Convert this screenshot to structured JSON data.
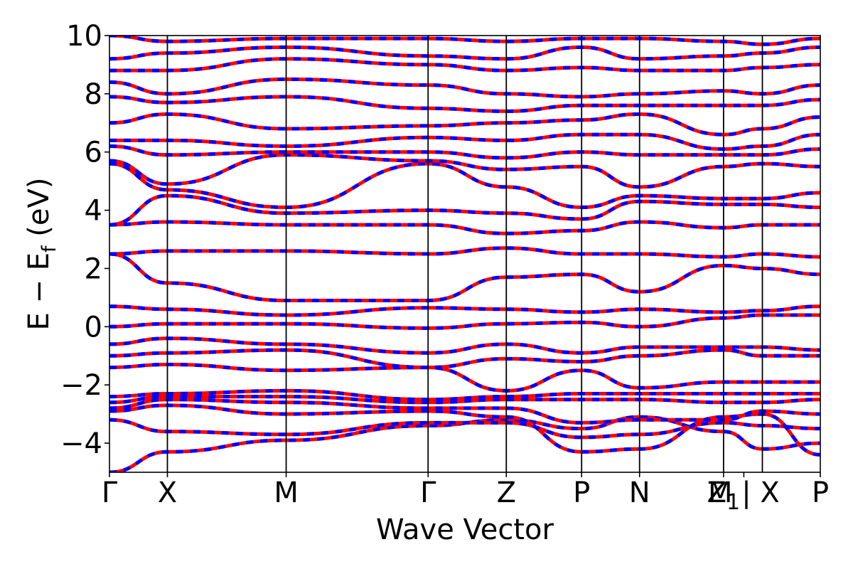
{
  "chart_data": {
    "type": "line",
    "xlabel": "Wave Vector",
    "ylabel": "E − E",
    "ylabel_subscript": "f",
    "ylabel_unit": " (eV)",
    "ylim": [
      -5,
      10
    ],
    "yticks": [
      -4,
      -2,
      0,
      2,
      4,
      6,
      8,
      10
    ],
    "ytick_labels": [
      "−4",
      "−2",
      "0",
      "2",
      "4",
      "6",
      "8",
      "10"
    ],
    "grid": false,
    "kpath_positions": [
      0,
      1.0,
      3.05,
      5.5,
      6.85,
      8.15,
      9.15,
      10.6,
      11.27,
      12.27
    ],
    "kpoint_labels": [
      {
        "k": 0,
        "label": "Γ"
      },
      {
        "k": 1.0,
        "label": "X"
      },
      {
        "k": 3.05,
        "label": "M"
      },
      {
        "k": 5.5,
        "label": "Γ"
      },
      {
        "k": 6.85,
        "label": "Z"
      },
      {
        "k": 8.15,
        "label": "P"
      },
      {
        "k": 9.15,
        "label": "N"
      },
      {
        "k": 10.6,
        "label": "Z",
        "subscript": "1"
      },
      {
        "k": 10.95,
        "label": "M | X"
      },
      {
        "k": 12.27,
        "label": "P"
      }
    ],
    "series_colors": {
      "solid": "#ff0000",
      "dashed": "#0000ff"
    },
    "series": [
      {
        "values": [
          -5.0,
          -4.3,
          -3.9,
          -3.4,
          -3.2,
          -3.5,
          -3.1,
          -3.6,
          -4.2,
          -4.0
        ]
      },
      {
        "values": [
          -3.2,
          -3.6,
          -3.7,
          -3.3,
          -3.3,
          -3.8,
          -3.7,
          -3.3,
          -3.4,
          -3.5
        ]
      },
      {
        "values": [
          -2.9,
          -2.7,
          -3.0,
          -2.9,
          -3.1,
          -4.3,
          -4.2,
          -3.1,
          -3.0,
          -4.4
        ]
      },
      {
        "values": [
          -2.8,
          -2.5,
          -2.6,
          -2.8,
          -2.8,
          -3.3,
          -3.2,
          -3.2,
          -2.9,
          -3.0
        ]
      },
      {
        "values": [
          -2.6,
          -2.4,
          -2.4,
          -2.6,
          -2.5,
          -2.5,
          -2.5,
          -2.6,
          -2.6,
          -2.5
        ]
      },
      {
        "values": [
          -2.4,
          -2.3,
          -2.2,
          -2.5,
          -2.4,
          -2.3,
          -2.3,
          -2.3,
          -2.3,
          -2.3
        ]
      },
      {
        "values": [
          -1.4,
          -1.3,
          -1.5,
          -1.4,
          -2.2,
          -1.5,
          -2.1,
          -1.9,
          -1.9,
          -1.9
        ]
      },
      {
        "values": [
          -1.0,
          -0.9,
          -0.8,
          -1.4,
          -1.1,
          -1.2,
          -1.0,
          -0.8,
          -1.0,
          -1.0
        ]
      },
      {
        "values": [
          -0.6,
          -0.4,
          -0.6,
          -0.9,
          -0.6,
          -0.9,
          -0.7,
          -0.7,
          -0.7,
          -0.8
        ]
      },
      {
        "values": [
          0.0,
          0.1,
          0.1,
          -0.05,
          0.1,
          0.15,
          0.0,
          0.3,
          0.4,
          0.4
        ]
      },
      {
        "values": [
          0.7,
          0.6,
          0.4,
          0.65,
          0.6,
          0.5,
          0.6,
          0.5,
          0.55,
          0.7
        ]
      },
      {
        "values": [
          2.5,
          1.5,
          0.9,
          0.9,
          1.7,
          1.8,
          1.2,
          2.1,
          2.0,
          1.8
        ]
      },
      {
        "values": [
          2.5,
          2.6,
          2.6,
          2.5,
          2.7,
          2.5,
          2.5,
          2.4,
          2.5,
          2.4
        ]
      },
      {
        "values": [
          3.5,
          3.6,
          3.5,
          3.5,
          3.2,
          3.3,
          3.6,
          3.4,
          3.5,
          3.5
        ]
      },
      {
        "values": [
          3.5,
          4.5,
          3.9,
          4.0,
          3.9,
          3.7,
          4.3,
          4.2,
          4.2,
          4.1
        ]
      },
      {
        "values": [
          5.6,
          4.7,
          4.1,
          5.6,
          4.8,
          4.1,
          4.5,
          4.4,
          4.4,
          4.6
        ]
      },
      {
        "values": [
          5.7,
          4.9,
          5.9,
          5.7,
          5.4,
          5.5,
          4.8,
          5.5,
          5.6,
          5.5
        ]
      },
      {
        "values": [
          6.2,
          5.9,
          6.0,
          6.0,
          5.8,
          6.0,
          5.9,
          5.9,
          5.9,
          6.1
        ]
      },
      {
        "values": [
          6.4,
          6.4,
          6.2,
          6.5,
          6.4,
          6.6,
          6.6,
          6.1,
          6.2,
          6.6
        ]
      },
      {
        "values": [
          7.0,
          7.3,
          6.8,
          6.9,
          7.0,
          7.1,
          7.3,
          6.6,
          6.8,
          7.2
        ]
      },
      {
        "values": [
          7.9,
          7.7,
          7.9,
          7.5,
          7.4,
          7.6,
          7.6,
          7.6,
          7.6,
          7.8
        ]
      },
      {
        "values": [
          8.4,
          8.0,
          8.5,
          8.3,
          8.0,
          7.9,
          8.0,
          8.1,
          8.0,
          8.3
        ]
      },
      {
        "values": [
          8.8,
          8.8,
          9.2,
          9.0,
          8.8,
          8.9,
          8.8,
          8.8,
          8.9,
          9.0
        ]
      },
      {
        "values": [
          9.2,
          9.4,
          9.6,
          9.3,
          9.2,
          9.6,
          9.2,
          9.3,
          9.4,
          9.6
        ]
      },
      {
        "values": [
          10.0,
          9.8,
          9.9,
          9.9,
          9.8,
          9.9,
          9.9,
          9.8,
          9.7,
          9.9
        ]
      }
    ]
  }
}
